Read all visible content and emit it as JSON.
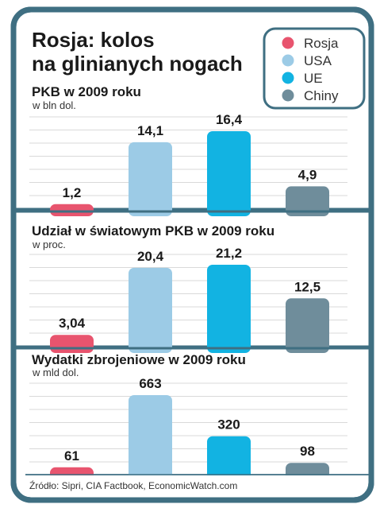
{
  "title_lines": [
    "Rosja: kolos",
    "na glinianych nogach"
  ],
  "legend": [
    {
      "label": "Rosja",
      "color": "#e8546e"
    },
    {
      "label": "USA",
      "color": "#9ccbe6"
    },
    {
      "label": "UE",
      "color": "#12b3e2"
    },
    {
      "label": "Chiny",
      "color": "#6f8d9b"
    }
  ],
  "source": "Źródło: Sipri, CIA Factbook, EconomicWatch.com",
  "colors": {
    "frame": "#3f6f82",
    "grid": "#d9d9d9",
    "text": "#1a1a1a"
  },
  "chart_data": [
    {
      "type": "bar",
      "title": "PKB w 2009 roku",
      "subtitle": "w bln dol.",
      "categories": [
        "Rosja",
        "USA",
        "UE",
        "Chiny"
      ],
      "values": [
        1.2,
        14.1,
        16.4,
        4.9
      ],
      "labels": [
        "1,2",
        "14,1",
        "16,4",
        "4,9"
      ],
      "ylim": [
        0,
        16.4
      ],
      "grid": true
    },
    {
      "type": "bar",
      "title": "Udział w światowym PKB w 2009 roku",
      "subtitle": "w proc.",
      "categories": [
        "Rosja",
        "USA",
        "UE",
        "Chiny"
      ],
      "values": [
        3.04,
        20.4,
        21.2,
        12.5
      ],
      "labels": [
        "3,04",
        "20,4",
        "21,2",
        "12,5"
      ],
      "ylim": [
        0,
        21.2
      ],
      "grid": true
    },
    {
      "type": "bar",
      "title": "Wydatki zbrojeniowe w 2009 roku",
      "subtitle": "w mld dol.",
      "categories": [
        "Rosja",
        "USA",
        "UE",
        "Chiny"
      ],
      "values": [
        61,
        663,
        320,
        98
      ],
      "labels": [
        "61",
        "663",
        "320",
        "98"
      ],
      "ylim": [
        0,
        663
      ],
      "grid": true
    }
  ]
}
